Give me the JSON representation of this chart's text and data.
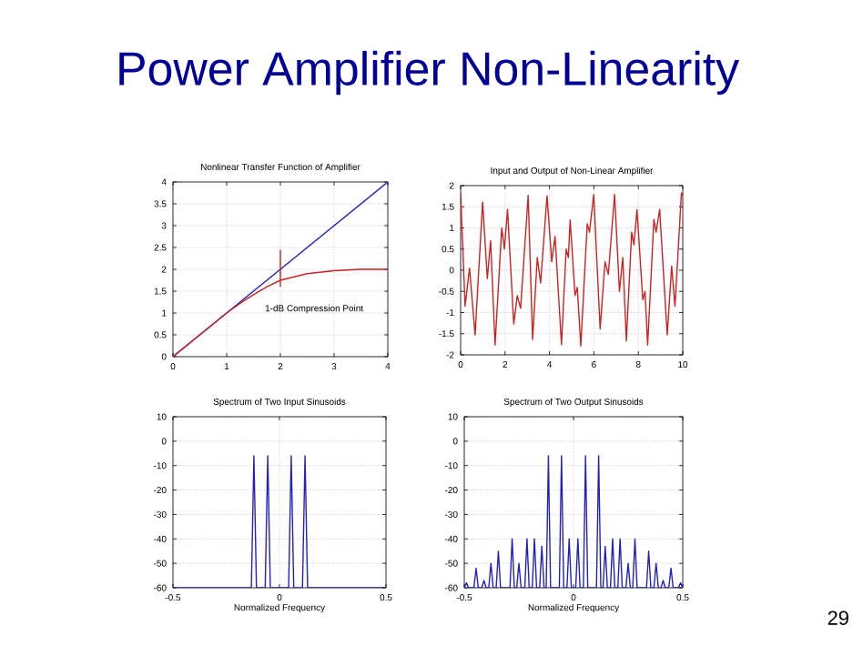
{
  "chart_data": [
    {
      "type": "other",
      "title": "Power Amplifier Non-Linearity",
      "annotations": [
        "29"
      ]
    },
    {
      "type": "line",
      "title": "Nonlinear Transfer Function of Amplifier",
      "xlim": [
        0,
        4
      ],
      "ylim": [
        0,
        4
      ],
      "xticks": [
        0,
        1,
        2,
        3,
        4
      ],
      "yticks": [
        0,
        0.5,
        1,
        1.5,
        2,
        2.5,
        3,
        3.5,
        4
      ],
      "grid": true,
      "annotations": [
        {
          "text": "1-dB Compression Point",
          "x": 2,
          "y": 1.75
        }
      ],
      "series": [
        {
          "color": "#2222bb",
          "x": [
            0,
            4
          ],
          "values": [
            0,
            4
          ]
        },
        {
          "color": "#cc2222",
          "x": [
            0,
            0.5,
            1,
            1.25,
            1.5,
            1.75,
            2,
            2.5,
            3,
            3.5,
            4
          ],
          "values": [
            0,
            0.5,
            1,
            1.22,
            1.42,
            1.6,
            1.75,
            1.9,
            1.97,
            2.0,
            2.0
          ]
        },
        {
          "color": "#cc2222",
          "x": [
            2,
            2
          ],
          "values": [
            1.6,
            2.45
          ]
        }
      ]
    },
    {
      "type": "line",
      "title": "Input and Output of Non-Linear Amplifier",
      "xlim": [
        0,
        10
      ],
      "ylim": [
        -2,
        2
      ],
      "xticks": [
        0,
        2,
        4,
        6,
        8,
        10
      ],
      "yticks": [
        -2,
        -1.5,
        -1,
        -0.5,
        0,
        0.5,
        1,
        1.5,
        2
      ],
      "grid": true,
      "series": [
        {
          "color": "#cc2222",
          "x": [
            0,
            0.2,
            0.4,
            0.65,
            0.99,
            1.2,
            1.35,
            1.55,
            1.85,
            1.97,
            2.11,
            2.39,
            2.55,
            2.7,
            3.04,
            3.24,
            3.45,
            3.6,
            3.89,
            4.1,
            4.25,
            4.54,
            4.75,
            4.85,
            4.93,
            5.15,
            5.25,
            5.41,
            5.7,
            5.8,
            5.99,
            6.28,
            6.5,
            6.65,
            6.93,
            7.15,
            7.3,
            7.46,
            7.7,
            7.8,
            7.94,
            8.2,
            8.3,
            8.42,
            8.7,
            8.8,
            8.96,
            9.3,
            9.5,
            9.65,
            9.94,
            10
          ],
          "values": [
            1.83,
            -0.85,
            0.05,
            -1.53,
            1.61,
            -0.2,
            0.7,
            -1.77,
            1.0,
            0.5,
            1.44,
            -1.27,
            -0.6,
            -0.9,
            1.77,
            -1.64,
            0.3,
            -0.3,
            1.76,
            0.2,
            0.8,
            -1.76,
            0.5,
            0.3,
            1.19,
            -0.6,
            -0.4,
            -1.79,
            1.1,
            0.9,
            1.79,
            -1.39,
            0.2,
            -0.1,
            1.79,
            -0.5,
            0.3,
            -1.67,
            0.9,
            0.6,
            1.43,
            -0.7,
            -0.5,
            -1.77,
            1.2,
            0.9,
            1.44,
            -1.53,
            0.1,
            -0.85,
            1.83,
            1.75
          ]
        }
      ]
    },
    {
      "type": "line",
      "title": "Spectrum of Two Input Sinusoids",
      "xlabel": "Normalized Frequency",
      "xlim": [
        -0.5,
        0.5
      ],
      "ylim": [
        -60,
        10
      ],
      "xticks": [
        -0.5,
        0,
        0.5
      ],
      "yticks": [
        -60,
        -50,
        -40,
        -30,
        -20,
        -10,
        0,
        10
      ],
      "grid": true,
      "series": [
        {
          "color": "#2222bb",
          "x": [
            -0.5,
            -0.132,
            -0.12,
            -0.108,
            -0.067,
            -0.055,
            -0.043,
            0.043,
            0.055,
            0.067,
            0.108,
            0.12,
            0.132,
            0.5
          ],
          "values": [
            -60,
            -60,
            -6,
            -60,
            -60,
            -6,
            -60,
            -60,
            -6,
            -60,
            -60,
            -6,
            -60,
            -60
          ]
        }
      ]
    },
    {
      "type": "line",
      "title": "Spectrum of Two Output Sinusoids",
      "xlabel": "Normalized Frequency",
      "xlim": [
        -0.5,
        0.5
      ],
      "ylim": [
        -60,
        10
      ],
      "xticks": [
        -0.5,
        0,
        0.5
      ],
      "yticks": [
        -60,
        -50,
        -40,
        -30,
        -20,
        -10,
        0,
        10
      ],
      "grid": true,
      "series": [
        {
          "color": "#2222bb",
          "x": [
            -0.5,
            -0.49,
            -0.48,
            -0.456,
            -0.446,
            -0.436,
            -0.42,
            -0.41,
            -0.4,
            -0.388,
            -0.378,
            -0.368,
            -0.354,
            -0.344,
            -0.334,
            -0.291,
            -0.281,
            -0.271,
            -0.26,
            -0.25,
            -0.24,
            -0.223,
            -0.213,
            -0.203,
            -0.189,
            -0.179,
            -0.169,
            -0.155,
            -0.145,
            -0.135,
            -0.125,
            -0.115,
            -0.105,
            -0.065,
            -0.055,
            -0.045,
            -0.03,
            -0.02,
            -0.01,
            0.01,
            0.02,
            0.03,
            0.045,
            0.055,
            0.065,
            0.105,
            0.115,
            0.125,
            0.135,
            0.145,
            0.155,
            0.169,
            0.179,
            0.189,
            0.203,
            0.213,
            0.223,
            0.24,
            0.25,
            0.26,
            0.271,
            0.281,
            0.291,
            0.334,
            0.344,
            0.354,
            0.368,
            0.378,
            0.388,
            0.4,
            0.41,
            0.42,
            0.436,
            0.446,
            0.456,
            0.48,
            0.49,
            0.5
          ],
          "values": [
            -60,
            -58,
            -60,
            -60,
            -52,
            -60,
            -60,
            -57,
            -60,
            -60,
            -50,
            -60,
            -60,
            -45,
            -60,
            -60,
            -40,
            -60,
            -60,
            -50,
            -60,
            -60,
            -40,
            -60,
            -60,
            -40,
            -60,
            -60,
            -43,
            -60,
            -60,
            -6,
            -60,
            -60,
            -6,
            -60,
            -60,
            -40,
            -60,
            -60,
            -40,
            -60,
            -60,
            -6,
            -60,
            -60,
            -6,
            -60,
            -60,
            -43,
            -60,
            -60,
            -40,
            -60,
            -60,
            -40,
            -60,
            -60,
            -50,
            -60,
            -60,
            -40,
            -60,
            -60,
            -45,
            -60,
            -60,
            -50,
            -60,
            -60,
            -57,
            -60,
            -60,
            -52,
            -60,
            -60,
            -58,
            -60
          ]
        }
      ]
    }
  ]
}
